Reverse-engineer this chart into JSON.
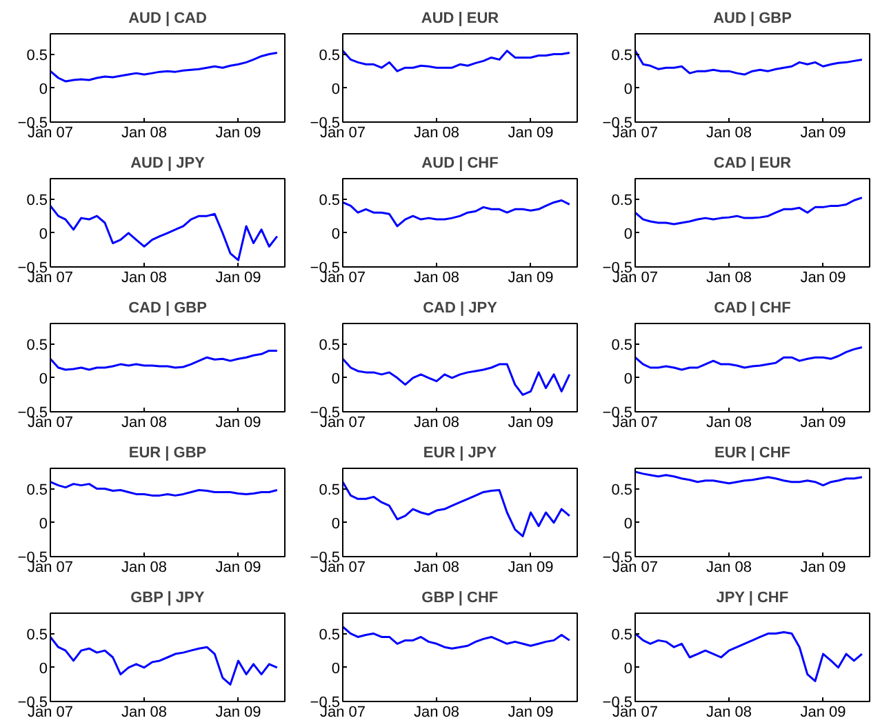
{
  "chart_data": [
    {
      "type": "line",
      "title": "AUD | CAD",
      "color": "#0000ff",
      "x": [
        "2007-01",
        "2007-02",
        "2007-03",
        "2007-04",
        "2007-05",
        "2007-06",
        "2007-07",
        "2007-08",
        "2007-09",
        "2007-10",
        "2007-11",
        "2007-12",
        "2008-01",
        "2008-02",
        "2008-03",
        "2008-04",
        "2008-05",
        "2008-06",
        "2008-07",
        "2008-08",
        "2008-09",
        "2008-10",
        "2008-11",
        "2008-12",
        "2009-01",
        "2009-02",
        "2009-03",
        "2009-04",
        "2009-05",
        "2009-06"
      ],
      "xlim": [
        "2007-01",
        "2009-07"
      ],
      "xticks": [
        {
          "value": "2007-01",
          "label": "Jan 07"
        },
        {
          "value": "2008-01",
          "label": "Jan 08"
        },
        {
          "value": "2009-01",
          "label": "Jan 09"
        }
      ],
      "ylim": [
        -0.5,
        0.8
      ],
      "yticks": [
        -0.5,
        0,
        0.5
      ],
      "values": [
        0.25,
        0.15,
        0.1,
        0.12,
        0.13,
        0.12,
        0.15,
        0.17,
        0.16,
        0.18,
        0.2,
        0.22,
        0.2,
        0.22,
        0.24,
        0.25,
        0.24,
        0.26,
        0.27,
        0.28,
        0.3,
        0.32,
        0.3,
        0.33,
        0.35,
        0.38,
        0.42,
        0.47,
        0.5,
        0.52
      ]
    },
    {
      "type": "line",
      "title": "AUD | EUR",
      "color": "#0000ff",
      "x": [
        "2007-01",
        "2007-02",
        "2007-03",
        "2007-04",
        "2007-05",
        "2007-06",
        "2007-07",
        "2007-08",
        "2007-09",
        "2007-10",
        "2007-11",
        "2007-12",
        "2008-01",
        "2008-02",
        "2008-03",
        "2008-04",
        "2008-05",
        "2008-06",
        "2008-07",
        "2008-08",
        "2008-09",
        "2008-10",
        "2008-11",
        "2008-12",
        "2009-01",
        "2009-02",
        "2009-03",
        "2009-04",
        "2009-05",
        "2009-06"
      ],
      "xlim": [
        "2007-01",
        "2009-07"
      ],
      "xticks": [
        {
          "value": "2007-01",
          "label": "Jan 07"
        },
        {
          "value": "2008-01",
          "label": "Jan 08"
        },
        {
          "value": "2009-01",
          "label": "Jan 09"
        }
      ],
      "ylim": [
        -0.5,
        0.8
      ],
      "yticks": [
        -0.5,
        0,
        0.5
      ],
      "values": [
        0.55,
        0.42,
        0.38,
        0.35,
        0.35,
        0.3,
        0.38,
        0.25,
        0.3,
        0.3,
        0.33,
        0.32,
        0.3,
        0.3,
        0.3,
        0.35,
        0.33,
        0.37,
        0.4,
        0.45,
        0.42,
        0.55,
        0.45,
        0.45,
        0.45,
        0.48,
        0.48,
        0.5,
        0.5,
        0.52
      ]
    },
    {
      "type": "line",
      "title": "AUD | GBP",
      "color": "#0000ff",
      "x": [
        "2007-01",
        "2007-02",
        "2007-03",
        "2007-04",
        "2007-05",
        "2007-06",
        "2007-07",
        "2007-08",
        "2007-09",
        "2007-10",
        "2007-11",
        "2007-12",
        "2008-01",
        "2008-02",
        "2008-03",
        "2008-04",
        "2008-05",
        "2008-06",
        "2008-07",
        "2008-08",
        "2008-09",
        "2008-10",
        "2008-11",
        "2008-12",
        "2009-01",
        "2009-02",
        "2009-03",
        "2009-04",
        "2009-05",
        "2009-06"
      ],
      "xlim": [
        "2007-01",
        "2009-07"
      ],
      "xticks": [
        {
          "value": "2007-01",
          "label": "Jan 07"
        },
        {
          "value": "2008-01",
          "label": "Jan 08"
        },
        {
          "value": "2009-01",
          "label": "Jan 09"
        }
      ],
      "ylim": [
        -0.5,
        0.8
      ],
      "yticks": [
        -0.5,
        0,
        0.5
      ],
      "values": [
        0.55,
        0.35,
        0.33,
        0.28,
        0.3,
        0.3,
        0.32,
        0.22,
        0.25,
        0.25,
        0.27,
        0.25,
        0.25,
        0.22,
        0.2,
        0.25,
        0.27,
        0.25,
        0.28,
        0.3,
        0.32,
        0.38,
        0.35,
        0.38,
        0.32,
        0.35,
        0.37,
        0.38,
        0.4,
        0.42
      ]
    },
    {
      "type": "line",
      "title": "AUD | JPY",
      "color": "#0000ff",
      "x": [
        "2007-01",
        "2007-02",
        "2007-03",
        "2007-04",
        "2007-05",
        "2007-06",
        "2007-07",
        "2007-08",
        "2007-09",
        "2007-10",
        "2007-11",
        "2007-12",
        "2008-01",
        "2008-02",
        "2008-03",
        "2008-04",
        "2008-05",
        "2008-06",
        "2008-07",
        "2008-08",
        "2008-09",
        "2008-10",
        "2008-11",
        "2008-12",
        "2009-01",
        "2009-02",
        "2009-03",
        "2009-04",
        "2009-05",
        "2009-06"
      ],
      "xlim": [
        "2007-01",
        "2009-07"
      ],
      "xticks": [
        {
          "value": "2007-01",
          "label": "Jan 07"
        },
        {
          "value": "2008-01",
          "label": "Jan 08"
        },
        {
          "value": "2009-01",
          "label": "Jan 09"
        }
      ],
      "ylim": [
        -0.5,
        0.8
      ],
      "yticks": [
        -0.5,
        0,
        0.5
      ],
      "values": [
        0.4,
        0.25,
        0.2,
        0.05,
        0.22,
        0.2,
        0.25,
        0.15,
        -0.15,
        -0.1,
        0.0,
        -0.1,
        -0.2,
        -0.1,
        -0.05,
        0.0,
        0.05,
        0.1,
        0.2,
        0.25,
        0.25,
        0.28,
        0.0,
        -0.3,
        -0.4,
        0.1,
        -0.15,
        0.05,
        -0.2,
        -0.05
      ]
    },
    {
      "type": "line",
      "title": "AUD | CHF",
      "color": "#0000ff",
      "x": [
        "2007-01",
        "2007-02",
        "2007-03",
        "2007-04",
        "2007-05",
        "2007-06",
        "2007-07",
        "2007-08",
        "2007-09",
        "2007-10",
        "2007-11",
        "2007-12",
        "2008-01",
        "2008-02",
        "2008-03",
        "2008-04",
        "2008-05",
        "2008-06",
        "2008-07",
        "2008-08",
        "2008-09",
        "2008-10",
        "2008-11",
        "2008-12",
        "2009-01",
        "2009-02",
        "2009-03",
        "2009-04",
        "2009-05",
        "2009-06"
      ],
      "xlim": [
        "2007-01",
        "2009-07"
      ],
      "xticks": [
        {
          "value": "2007-01",
          "label": "Jan 07"
        },
        {
          "value": "2008-01",
          "label": "Jan 08"
        },
        {
          "value": "2009-01",
          "label": "Jan 09"
        }
      ],
      "ylim": [
        -0.5,
        0.8
      ],
      "yticks": [
        -0.5,
        0,
        0.5
      ],
      "values": [
        0.45,
        0.4,
        0.3,
        0.35,
        0.3,
        0.3,
        0.28,
        0.1,
        0.2,
        0.25,
        0.2,
        0.22,
        0.2,
        0.2,
        0.22,
        0.25,
        0.3,
        0.32,
        0.38,
        0.35,
        0.35,
        0.3,
        0.35,
        0.35,
        0.33,
        0.35,
        0.4,
        0.45,
        0.48,
        0.42
      ]
    },
    {
      "type": "line",
      "title": "CAD | EUR",
      "color": "#0000ff",
      "x": [
        "2007-01",
        "2007-02",
        "2007-03",
        "2007-04",
        "2007-05",
        "2007-06",
        "2007-07",
        "2007-08",
        "2007-09",
        "2007-10",
        "2007-11",
        "2007-12",
        "2008-01",
        "2008-02",
        "2008-03",
        "2008-04",
        "2008-05",
        "2008-06",
        "2008-07",
        "2008-08",
        "2008-09",
        "2008-10",
        "2008-11",
        "2008-12",
        "2009-01",
        "2009-02",
        "2009-03",
        "2009-04",
        "2009-05",
        "2009-06"
      ],
      "xlim": [
        "2007-01",
        "2009-07"
      ],
      "xticks": [
        {
          "value": "2007-01",
          "label": "Jan 07"
        },
        {
          "value": "2008-01",
          "label": "Jan 08"
        },
        {
          "value": "2009-01",
          "label": "Jan 09"
        }
      ],
      "ylim": [
        -0.5,
        0.8
      ],
      "yticks": [
        -0.5,
        0,
        0.5
      ],
      "values": [
        0.3,
        0.2,
        0.17,
        0.15,
        0.15,
        0.13,
        0.15,
        0.17,
        0.2,
        0.22,
        0.2,
        0.22,
        0.23,
        0.25,
        0.22,
        0.22,
        0.23,
        0.25,
        0.3,
        0.35,
        0.35,
        0.37,
        0.3,
        0.38,
        0.38,
        0.4,
        0.4,
        0.42,
        0.48,
        0.52
      ]
    },
    {
      "type": "line",
      "title": "CAD | GBP",
      "color": "#0000ff",
      "x": [
        "2007-01",
        "2007-02",
        "2007-03",
        "2007-04",
        "2007-05",
        "2007-06",
        "2007-07",
        "2007-08",
        "2007-09",
        "2007-10",
        "2007-11",
        "2007-12",
        "2008-01",
        "2008-02",
        "2008-03",
        "2008-04",
        "2008-05",
        "2008-06",
        "2008-07",
        "2008-08",
        "2008-09",
        "2008-10",
        "2008-11",
        "2008-12",
        "2009-01",
        "2009-02",
        "2009-03",
        "2009-04",
        "2009-05",
        "2009-06"
      ],
      "xlim": [
        "2007-01",
        "2009-07"
      ],
      "xticks": [
        {
          "value": "2007-01",
          "label": "Jan 07"
        },
        {
          "value": "2008-01",
          "label": "Jan 08"
        },
        {
          "value": "2009-01",
          "label": "Jan 09"
        }
      ],
      "ylim": [
        -0.5,
        0.8
      ],
      "yticks": [
        -0.5,
        0,
        0.5
      ],
      "values": [
        0.28,
        0.15,
        0.12,
        0.13,
        0.15,
        0.12,
        0.15,
        0.15,
        0.17,
        0.2,
        0.18,
        0.2,
        0.18,
        0.18,
        0.17,
        0.17,
        0.15,
        0.16,
        0.2,
        0.25,
        0.3,
        0.27,
        0.28,
        0.25,
        0.28,
        0.3,
        0.33,
        0.35,
        0.4,
        0.4
      ]
    },
    {
      "type": "line",
      "title": "CAD | JPY",
      "color": "#0000ff",
      "x": [
        "2007-01",
        "2007-02",
        "2007-03",
        "2007-04",
        "2007-05",
        "2007-06",
        "2007-07",
        "2007-08",
        "2007-09",
        "2007-10",
        "2007-11",
        "2007-12",
        "2008-01",
        "2008-02",
        "2008-03",
        "2008-04",
        "2008-05",
        "2008-06",
        "2008-07",
        "2008-08",
        "2008-09",
        "2008-10",
        "2008-11",
        "2008-12",
        "2009-01",
        "2009-02",
        "2009-03",
        "2009-04",
        "2009-05",
        "2009-06"
      ],
      "xlim": [
        "2007-01",
        "2009-07"
      ],
      "xticks": [
        {
          "value": "2007-01",
          "label": "Jan 07"
        },
        {
          "value": "2008-01",
          "label": "Jan 08"
        },
        {
          "value": "2009-01",
          "label": "Jan 09"
        }
      ],
      "ylim": [
        -0.5,
        0.8
      ],
      "yticks": [
        -0.5,
        0,
        0.5
      ],
      "values": [
        0.28,
        0.15,
        0.1,
        0.08,
        0.08,
        0.05,
        0.08,
        0.0,
        -0.1,
        0.0,
        0.05,
        0.0,
        -0.05,
        0.05,
        0.0,
        0.05,
        0.08,
        0.1,
        0.12,
        0.15,
        0.2,
        0.2,
        -0.1,
        -0.25,
        -0.2,
        0.08,
        -0.15,
        0.05,
        -0.2,
        0.05
      ]
    },
    {
      "type": "line",
      "title": "CAD | CHF",
      "color": "#0000ff",
      "x": [
        "2007-01",
        "2007-02",
        "2007-03",
        "2007-04",
        "2007-05",
        "2007-06",
        "2007-07",
        "2007-08",
        "2007-09",
        "2007-10",
        "2007-11",
        "2007-12",
        "2008-01",
        "2008-02",
        "2008-03",
        "2008-04",
        "2008-05",
        "2008-06",
        "2008-07",
        "2008-08",
        "2008-09",
        "2008-10",
        "2008-11",
        "2008-12",
        "2009-01",
        "2009-02",
        "2009-03",
        "2009-04",
        "2009-05",
        "2009-06"
      ],
      "xlim": [
        "2007-01",
        "2009-07"
      ],
      "xticks": [
        {
          "value": "2007-01",
          "label": "Jan 07"
        },
        {
          "value": "2008-01",
          "label": "Jan 08"
        },
        {
          "value": "2009-01",
          "label": "Jan 09"
        }
      ],
      "ylim": [
        -0.5,
        0.8
      ],
      "yticks": [
        -0.5,
        0,
        0.5
      ],
      "values": [
        0.3,
        0.2,
        0.15,
        0.15,
        0.17,
        0.15,
        0.12,
        0.15,
        0.15,
        0.2,
        0.25,
        0.2,
        0.2,
        0.18,
        0.15,
        0.17,
        0.18,
        0.2,
        0.22,
        0.3,
        0.3,
        0.25,
        0.28,
        0.3,
        0.3,
        0.28,
        0.32,
        0.38,
        0.42,
        0.45
      ]
    },
    {
      "type": "line",
      "title": "EUR | GBP",
      "color": "#0000ff",
      "x": [
        "2007-01",
        "2007-02",
        "2007-03",
        "2007-04",
        "2007-05",
        "2007-06",
        "2007-07",
        "2007-08",
        "2007-09",
        "2007-10",
        "2007-11",
        "2007-12",
        "2008-01",
        "2008-02",
        "2008-03",
        "2008-04",
        "2008-05",
        "2008-06",
        "2008-07",
        "2008-08",
        "2008-09",
        "2008-10",
        "2008-11",
        "2008-12",
        "2009-01",
        "2009-02",
        "2009-03",
        "2009-04",
        "2009-05",
        "2009-06"
      ],
      "xlim": [
        "2007-01",
        "2009-07"
      ],
      "xticks": [
        {
          "value": "2007-01",
          "label": "Jan 07"
        },
        {
          "value": "2008-01",
          "label": "Jan 08"
        },
        {
          "value": "2009-01",
          "label": "Jan 09"
        }
      ],
      "ylim": [
        -0.5,
        0.8
      ],
      "yticks": [
        -0.5,
        0,
        0.5
      ],
      "values": [
        0.6,
        0.55,
        0.52,
        0.57,
        0.55,
        0.57,
        0.5,
        0.5,
        0.47,
        0.48,
        0.45,
        0.42,
        0.42,
        0.4,
        0.4,
        0.42,
        0.4,
        0.42,
        0.45,
        0.48,
        0.47,
        0.45,
        0.45,
        0.45,
        0.43,
        0.42,
        0.43,
        0.45,
        0.45,
        0.48
      ]
    },
    {
      "type": "line",
      "title": "EUR | JPY",
      "color": "#0000ff",
      "x": [
        "2007-01",
        "2007-02",
        "2007-03",
        "2007-04",
        "2007-05",
        "2007-06",
        "2007-07",
        "2007-08",
        "2007-09",
        "2007-10",
        "2007-11",
        "2007-12",
        "2008-01",
        "2008-02",
        "2008-03",
        "2008-04",
        "2008-05",
        "2008-06",
        "2008-07",
        "2008-08",
        "2008-09",
        "2008-10",
        "2008-11",
        "2008-12",
        "2009-01",
        "2009-02",
        "2009-03",
        "2009-04",
        "2009-05",
        "2009-06"
      ],
      "xlim": [
        "2007-01",
        "2009-07"
      ],
      "xticks": [
        {
          "value": "2007-01",
          "label": "Jan 07"
        },
        {
          "value": "2008-01",
          "label": "Jan 08"
        },
        {
          "value": "2009-01",
          "label": "Jan 09"
        }
      ],
      "ylim": [
        -0.5,
        0.8
      ],
      "yticks": [
        -0.5,
        0,
        0.5
      ],
      "values": [
        0.6,
        0.4,
        0.35,
        0.35,
        0.38,
        0.3,
        0.25,
        0.05,
        0.1,
        0.2,
        0.15,
        0.12,
        0.18,
        0.2,
        0.25,
        0.3,
        0.35,
        0.4,
        0.45,
        0.47,
        0.48,
        0.15,
        -0.1,
        -0.2,
        0.15,
        -0.05,
        0.15,
        0.0,
        0.2,
        0.1
      ]
    },
    {
      "type": "line",
      "title": "EUR | CHF",
      "color": "#0000ff",
      "x": [
        "2007-01",
        "2007-02",
        "2007-03",
        "2007-04",
        "2007-05",
        "2007-06",
        "2007-07",
        "2007-08",
        "2007-09",
        "2007-10",
        "2007-11",
        "2007-12",
        "2008-01",
        "2008-02",
        "2008-03",
        "2008-04",
        "2008-05",
        "2008-06",
        "2008-07",
        "2008-08",
        "2008-09",
        "2008-10",
        "2008-11",
        "2008-12",
        "2009-01",
        "2009-02",
        "2009-03",
        "2009-04",
        "2009-05",
        "2009-06"
      ],
      "xlim": [
        "2007-01",
        "2009-07"
      ],
      "xticks": [
        {
          "value": "2007-01",
          "label": "Jan 07"
        },
        {
          "value": "2008-01",
          "label": "Jan 08"
        },
        {
          "value": "2009-01",
          "label": "Jan 09"
        }
      ],
      "ylim": [
        -0.5,
        0.8
      ],
      "yticks": [
        -0.5,
        0,
        0.5
      ],
      "values": [
        0.75,
        0.72,
        0.7,
        0.68,
        0.7,
        0.68,
        0.65,
        0.63,
        0.6,
        0.62,
        0.62,
        0.6,
        0.58,
        0.6,
        0.62,
        0.63,
        0.65,
        0.67,
        0.65,
        0.62,
        0.6,
        0.6,
        0.62,
        0.6,
        0.55,
        0.6,
        0.62,
        0.65,
        0.65,
        0.67
      ]
    },
    {
      "type": "line",
      "title": "GBP | JPY",
      "color": "#0000ff",
      "x": [
        "2007-01",
        "2007-02",
        "2007-03",
        "2007-04",
        "2007-05",
        "2007-06",
        "2007-07",
        "2007-08",
        "2007-09",
        "2007-10",
        "2007-11",
        "2007-12",
        "2008-01",
        "2008-02",
        "2008-03",
        "2008-04",
        "2008-05",
        "2008-06",
        "2008-07",
        "2008-08",
        "2008-09",
        "2008-10",
        "2008-11",
        "2008-12",
        "2009-01",
        "2009-02",
        "2009-03",
        "2009-04",
        "2009-05",
        "2009-06"
      ],
      "xlim": [
        "2007-01",
        "2009-07"
      ],
      "xticks": [
        {
          "value": "2007-01",
          "label": "Jan 07"
        },
        {
          "value": "2008-01",
          "label": "Jan 08"
        },
        {
          "value": "2009-01",
          "label": "Jan 09"
        }
      ],
      "ylim": [
        -0.5,
        0.8
      ],
      "yticks": [
        -0.5,
        0,
        0.5
      ],
      "values": [
        0.45,
        0.3,
        0.25,
        0.1,
        0.25,
        0.28,
        0.22,
        0.25,
        0.15,
        -0.1,
        0.0,
        0.05,
        0.0,
        0.08,
        0.1,
        0.15,
        0.2,
        0.22,
        0.25,
        0.28,
        0.3,
        0.2,
        -0.15,
        -0.25,
        0.1,
        -0.1,
        0.05,
        -0.1,
        0.05,
        0.0
      ]
    },
    {
      "type": "line",
      "title": "GBP | CHF",
      "color": "#0000ff",
      "x": [
        "2007-01",
        "2007-02",
        "2007-03",
        "2007-04",
        "2007-05",
        "2007-06",
        "2007-07",
        "2007-08",
        "2007-09",
        "2007-10",
        "2007-11",
        "2007-12",
        "2008-01",
        "2008-02",
        "2008-03",
        "2008-04",
        "2008-05",
        "2008-06",
        "2008-07",
        "2008-08",
        "2008-09",
        "2008-10",
        "2008-11",
        "2008-12",
        "2009-01",
        "2009-02",
        "2009-03",
        "2009-04",
        "2009-05",
        "2009-06"
      ],
      "xlim": [
        "2007-01",
        "2009-07"
      ],
      "xticks": [
        {
          "value": "2007-01",
          "label": "Jan 07"
        },
        {
          "value": "2008-01",
          "label": "Jan 08"
        },
        {
          "value": "2009-01",
          "label": "Jan 09"
        }
      ],
      "ylim": [
        -0.5,
        0.8
      ],
      "yticks": [
        -0.5,
        0,
        0.5
      ],
      "values": [
        0.6,
        0.5,
        0.45,
        0.48,
        0.5,
        0.45,
        0.45,
        0.35,
        0.4,
        0.4,
        0.45,
        0.38,
        0.35,
        0.3,
        0.28,
        0.3,
        0.32,
        0.38,
        0.42,
        0.45,
        0.4,
        0.35,
        0.38,
        0.35,
        0.32,
        0.35,
        0.38,
        0.4,
        0.48,
        0.4
      ]
    },
    {
      "type": "line",
      "title": "JPY | CHF",
      "color": "#0000ff",
      "x": [
        "2007-01",
        "2007-02",
        "2007-03",
        "2007-04",
        "2007-05",
        "2007-06",
        "2007-07",
        "2007-08",
        "2007-09",
        "2007-10",
        "2007-11",
        "2007-12",
        "2008-01",
        "2008-02",
        "2008-03",
        "2008-04",
        "2008-05",
        "2008-06",
        "2008-07",
        "2008-08",
        "2008-09",
        "2008-10",
        "2008-11",
        "2008-12",
        "2009-01",
        "2009-02",
        "2009-03",
        "2009-04",
        "2009-05",
        "2009-06"
      ],
      "xlim": [
        "2007-01",
        "2009-07"
      ],
      "xticks": [
        {
          "value": "2007-01",
          "label": "Jan 07"
        },
        {
          "value": "2008-01",
          "label": "Jan 08"
        },
        {
          "value": "2009-01",
          "label": "Jan 09"
        }
      ],
      "ylim": [
        -0.5,
        0.8
      ],
      "yticks": [
        -0.5,
        0,
        0.5
      ],
      "values": [
        0.5,
        0.4,
        0.35,
        0.4,
        0.38,
        0.3,
        0.35,
        0.15,
        0.2,
        0.25,
        0.2,
        0.15,
        0.25,
        0.3,
        0.35,
        0.4,
        0.45,
        0.5,
        0.5,
        0.52,
        0.5,
        0.3,
        -0.1,
        -0.2,
        0.2,
        0.1,
        0.0,
        0.2,
        0.1,
        0.2
      ]
    }
  ]
}
